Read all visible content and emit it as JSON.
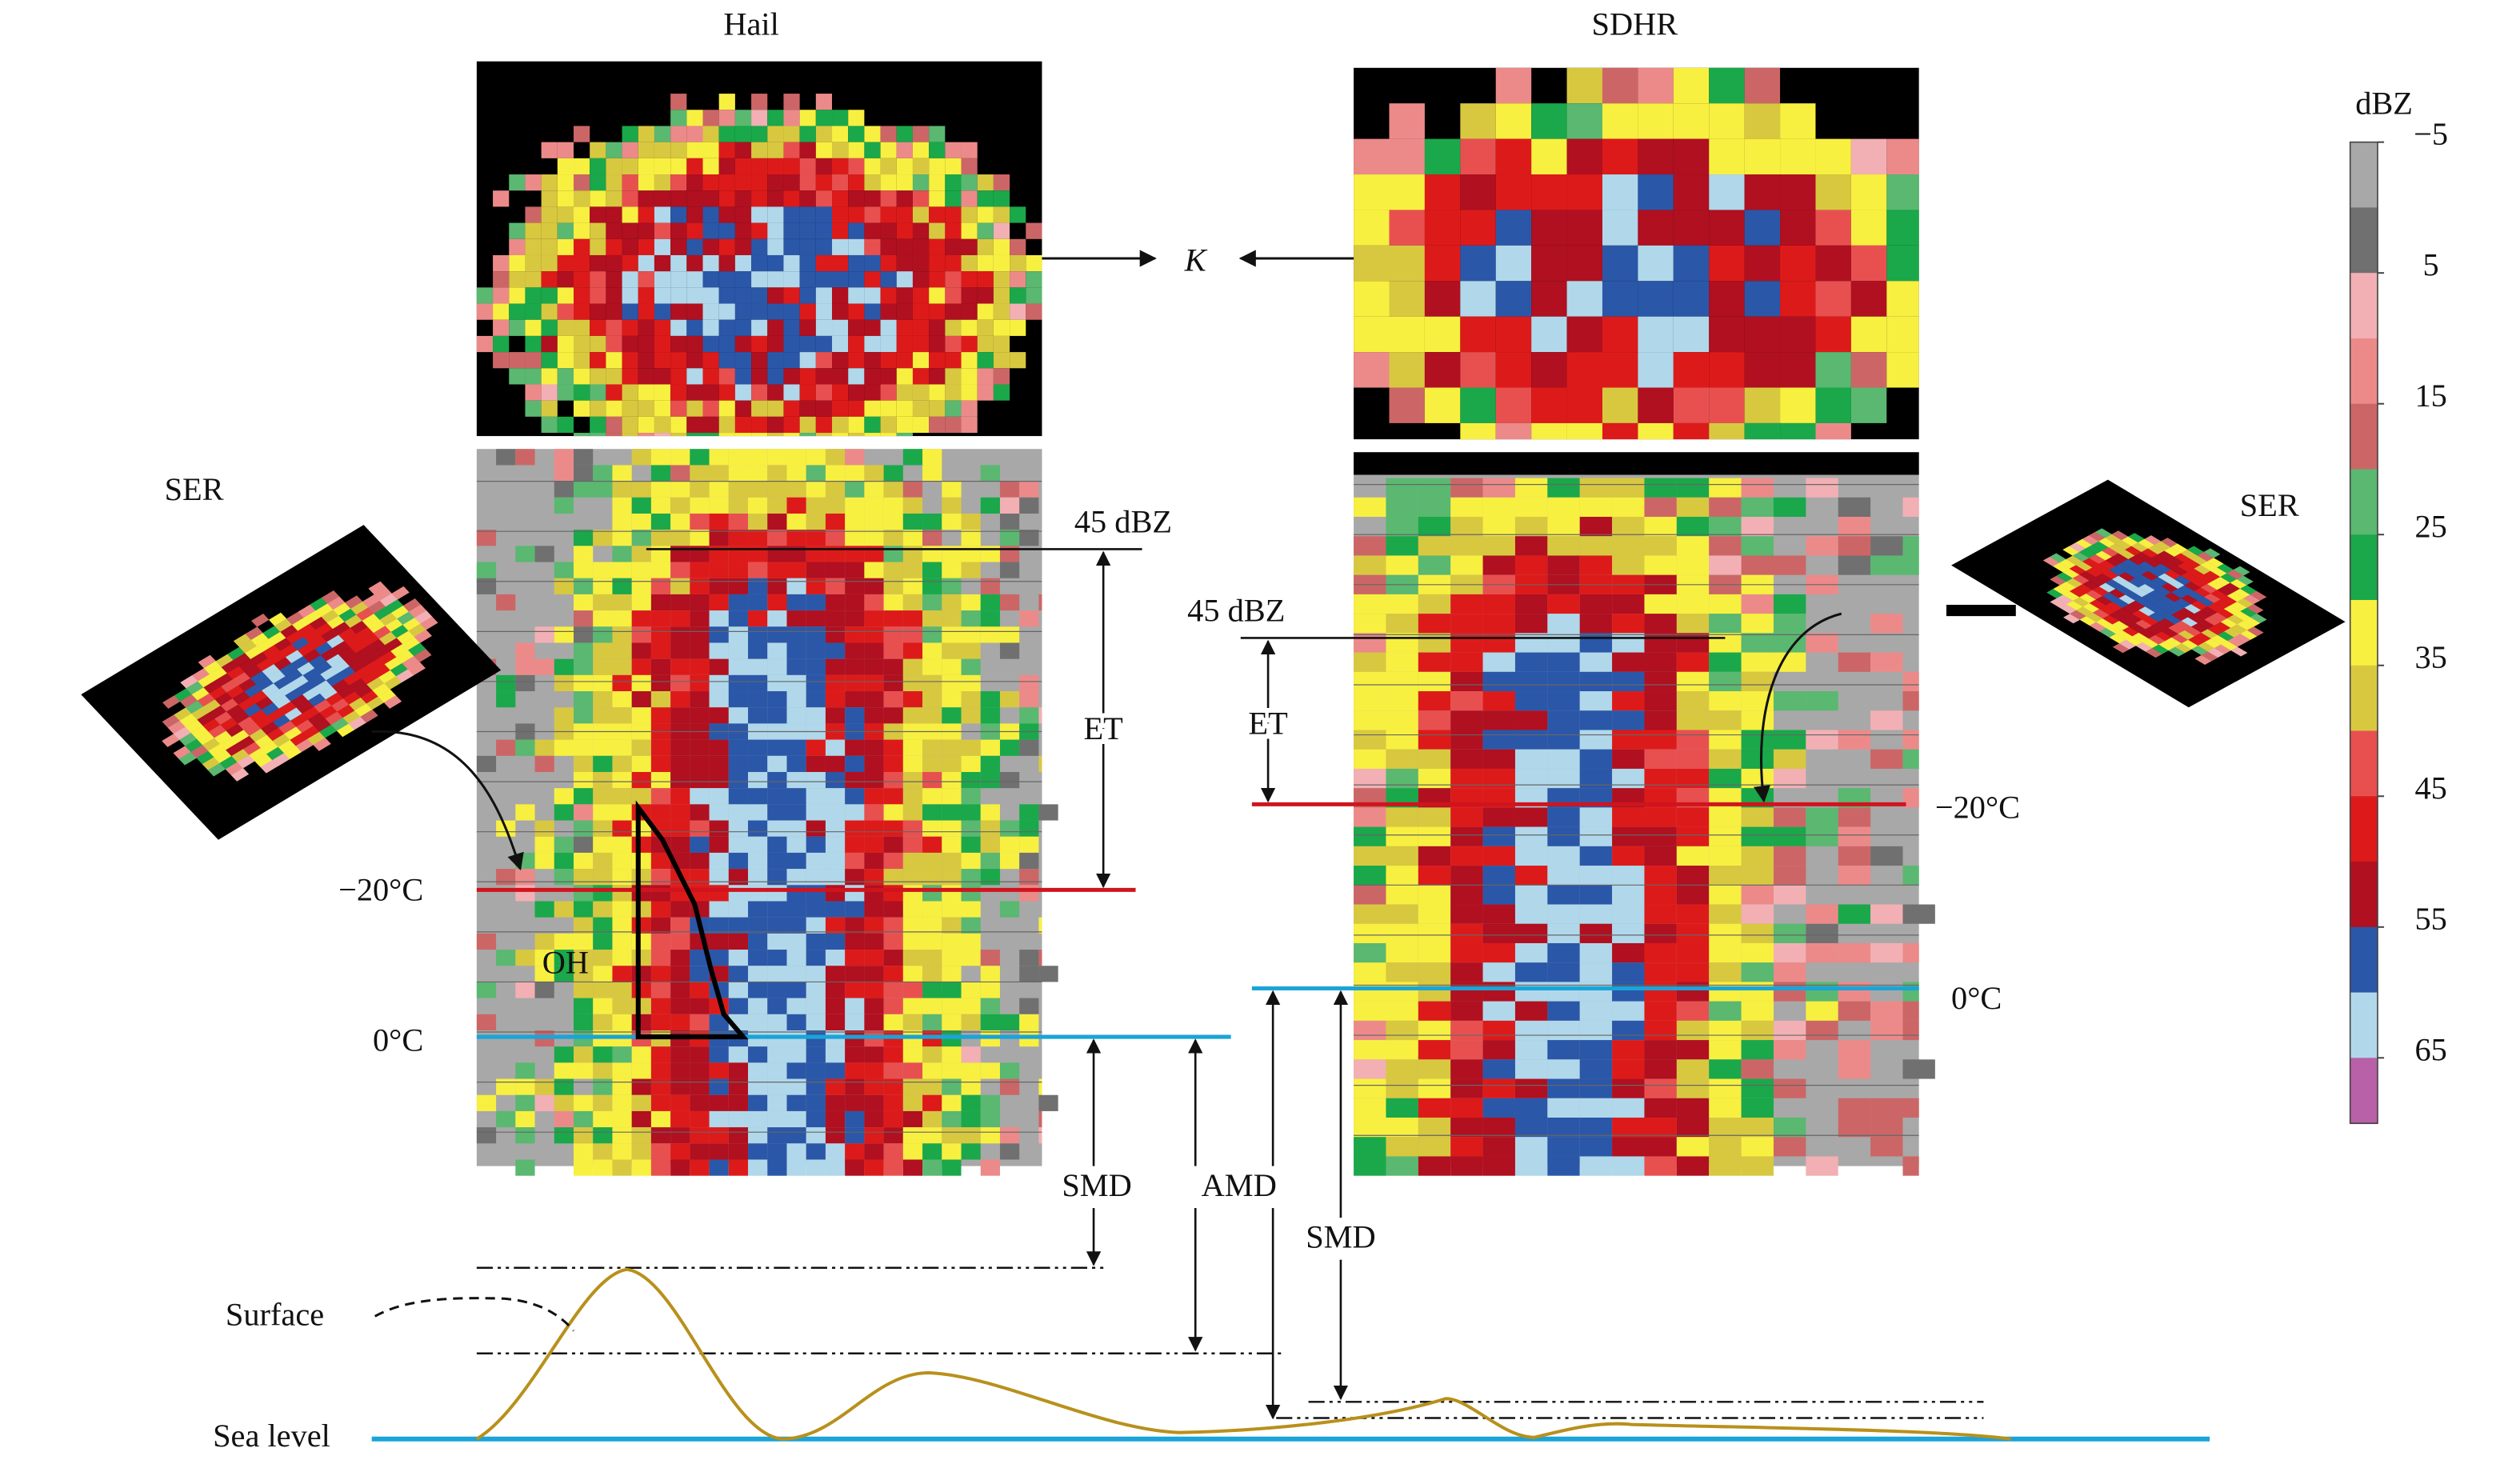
{
  "panels": [
    {
      "title": "Hail"
    },
    {
      "title": "SDHR"
    }
  ],
  "labels": {
    "k": "K",
    "ser_left": "SER",
    "ser_right": "SER",
    "dbz45_left": "45 dBZ",
    "dbz45_right": "45 dBZ",
    "et_left": "ET",
    "et_right": "ET",
    "minus20_left": "−20°C",
    "minus20_right": "−20°C",
    "zero_left": "0°C",
    "zero_right": "0°C",
    "oh": "OH",
    "smd_left": "SMD",
    "amd": "AMD",
    "smd_right": "SMD",
    "surface": "Surface",
    "sea_level": "Sea level"
  },
  "colorbar": {
    "unit": "dBZ",
    "ticks": [
      {
        "value": -5,
        "label": "−5"
      },
      5,
      15,
      25,
      35,
      45,
      55,
      65
    ],
    "colors": [
      "#a8a8a8",
      "#707070",
      "#f2b0b4",
      "#ec8a8a",
      "#cc6666",
      "#5ab870",
      "#1aa84a",
      "#f8f040",
      "#d8c840",
      "#e85050",
      "#dd1a1a",
      "#b01020",
      "#2b57a8",
      "#b0d8ea",
      "#b860a8"
    ]
  }
}
